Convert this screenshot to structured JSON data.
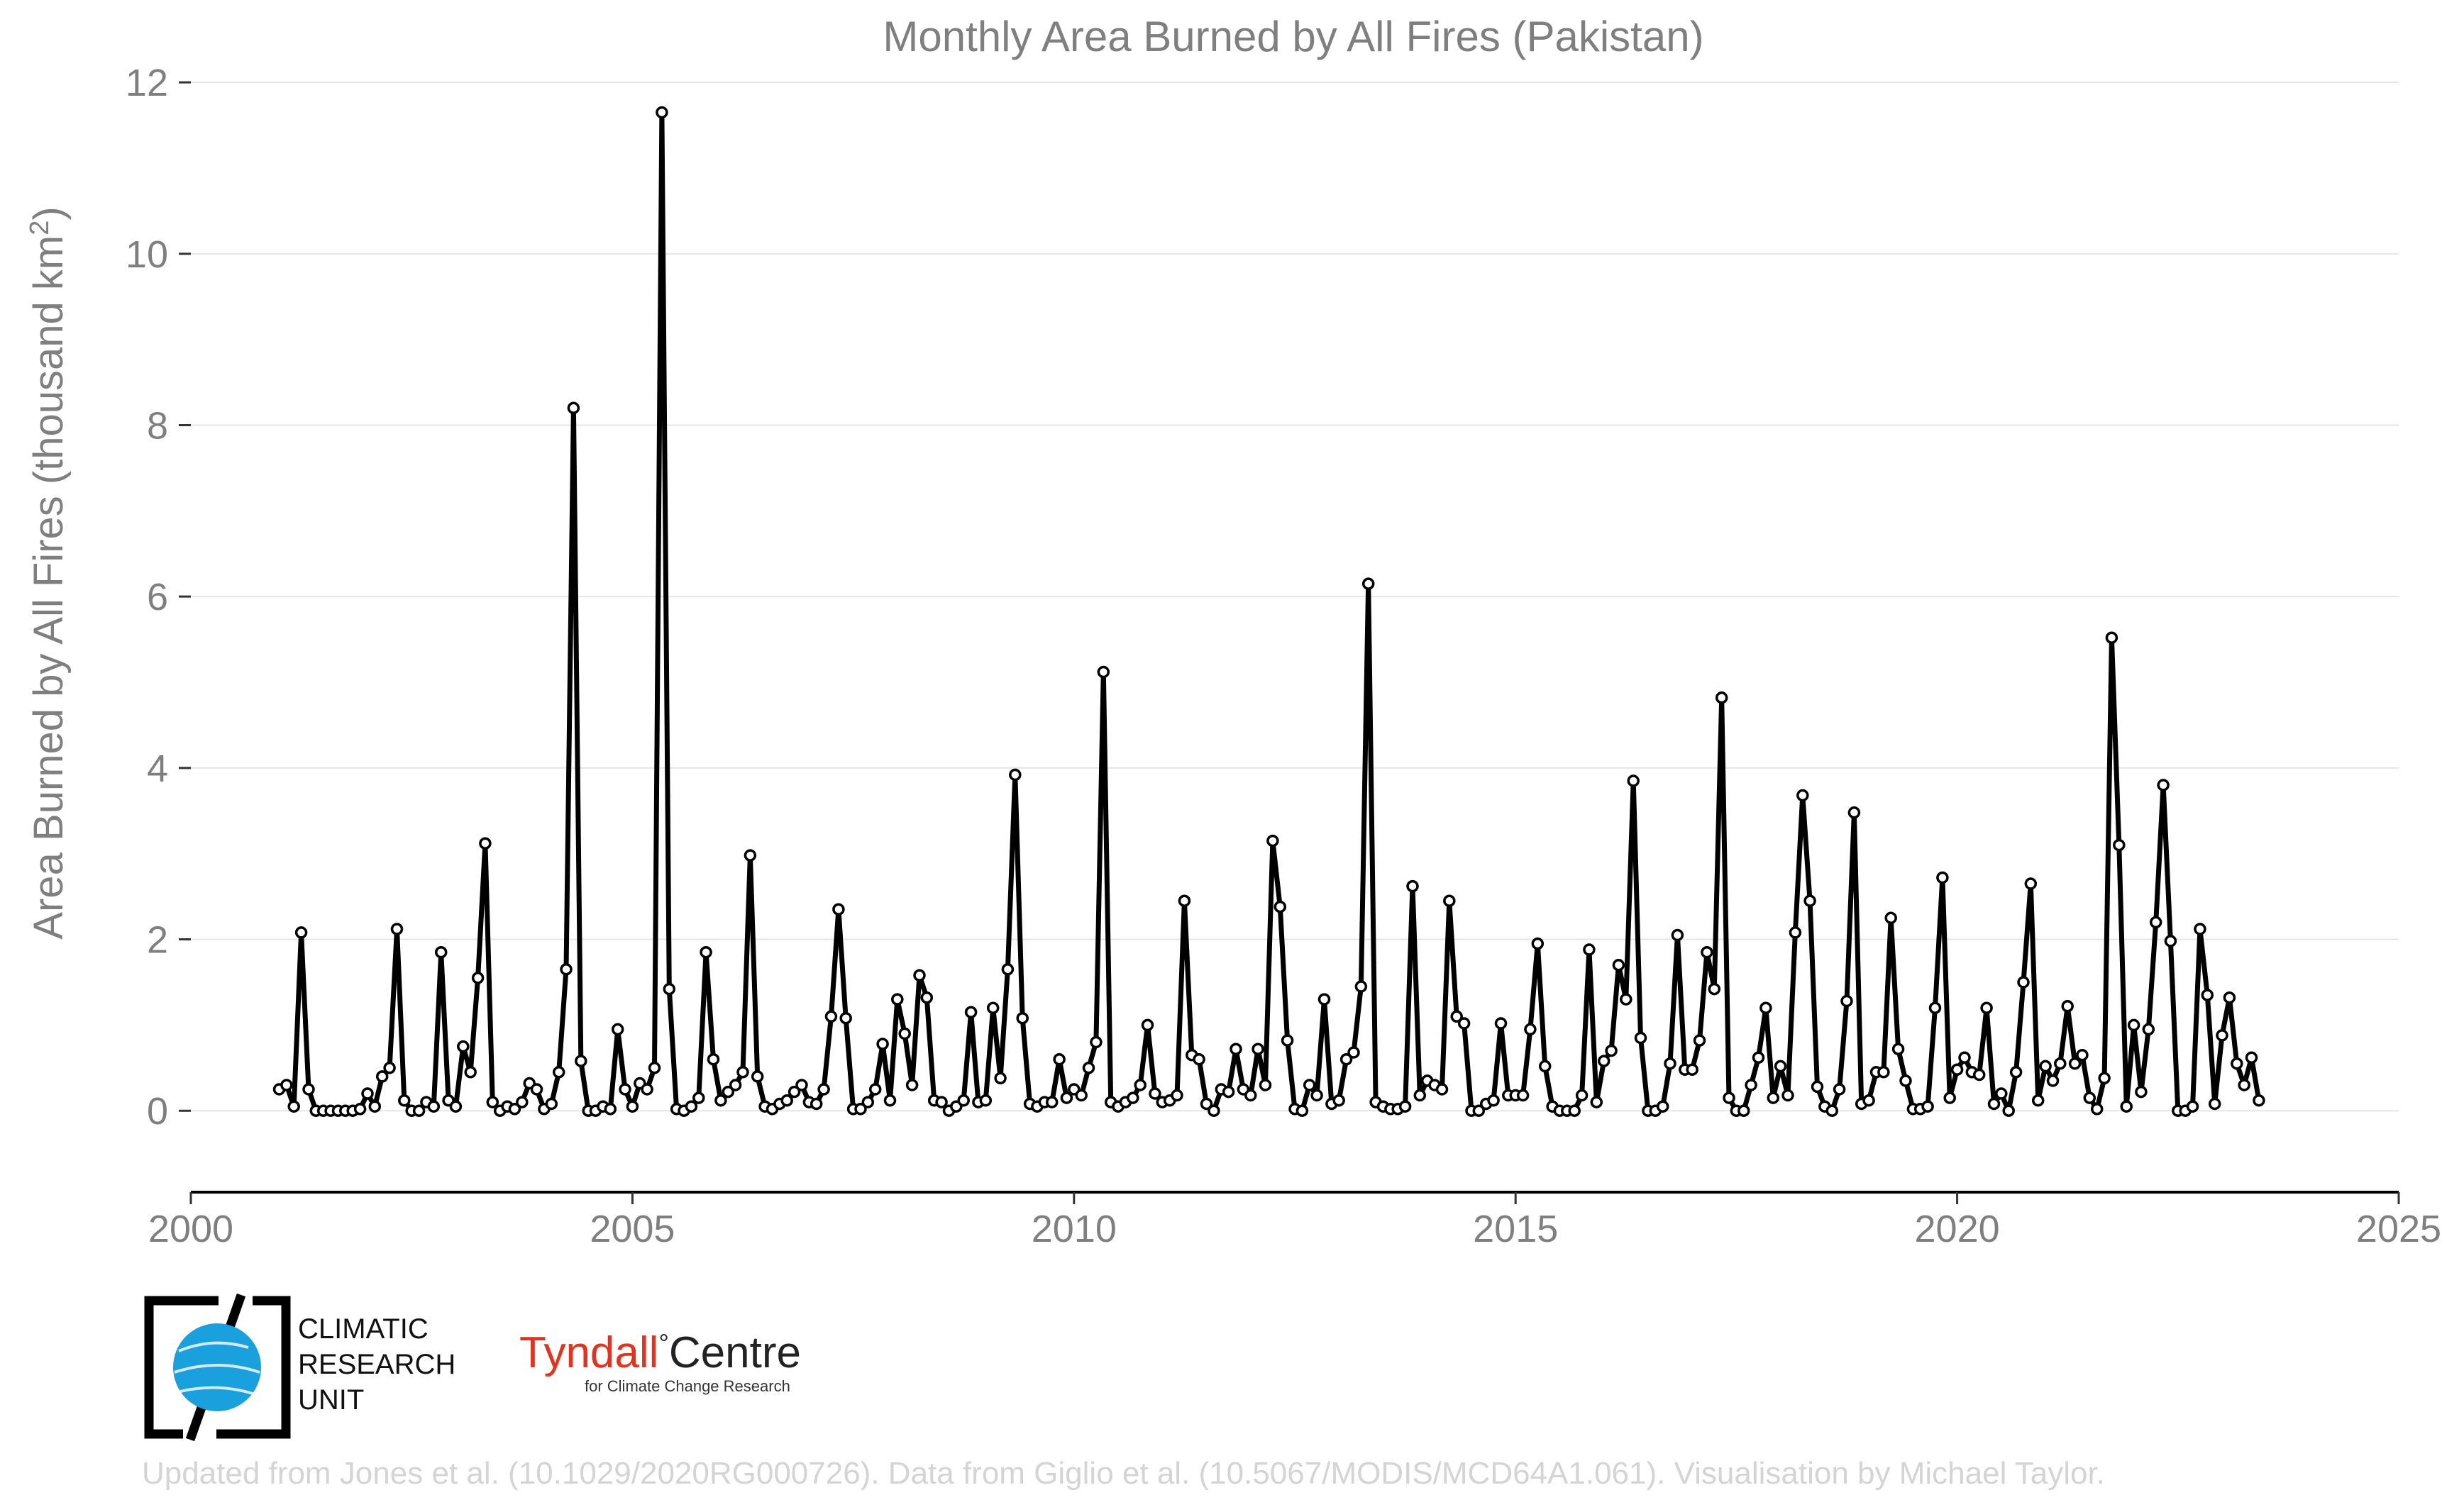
{
  "chart_data": {
    "type": "line",
    "title": "Monthly Area Burned by All Fires (Pakistan)",
    "ylabel": "Area Burned by All Fires (thousand km",
    "ylabel_sup": "2",
    "ylabel_end": ")",
    "xlabel": "",
    "xlim": [
      2000,
      2025
    ],
    "ylim": [
      -0.95,
      12.2
    ],
    "x_ticks": [
      2000,
      2005,
      2010,
      2015,
      2020,
      2025
    ],
    "x_tick_labels": [
      "2000",
      "2005",
      "2010",
      "2015",
      "2020",
      "2025"
    ],
    "y_ticks": [
      0,
      2,
      4,
      6,
      8,
      10,
      12
    ],
    "y_tick_labels": [
      "0",
      "2",
      "4",
      "6",
      "8",
      "10",
      "12"
    ],
    "grid": "horizontal",
    "legend": "none",
    "start_year": 2001,
    "start_month": 1,
    "series": [
      {
        "values": [
          0.25,
          0.3,
          0.05,
          2.08,
          0.25,
          0.0,
          0.0,
          0.0,
          0.0,
          0.0,
          0.0,
          0.02,
          0.2,
          0.05,
          0.4,
          0.5,
          2.12,
          0.12,
          0.0,
          0.0,
          0.1,
          0.05,
          1.85,
          0.12,
          0.05,
          0.75,
          0.45,
          1.55,
          3.12,
          0.1,
          0.0,
          0.05,
          0.02,
          0.1,
          0.32,
          0.25,
          0.02,
          0.08,
          0.45,
          1.65,
          8.2,
          0.58,
          0.0,
          0.0,
          0.05,
          0.02,
          0.95,
          0.25,
          0.05,
          0.32,
          0.25,
          0.5,
          11.65,
          1.42,
          0.02,
          0.0,
          0.05,
          0.15,
          1.85,
          0.6,
          0.12,
          0.22,
          0.3,
          0.45,
          2.98,
          0.4,
          0.05,
          0.02,
          0.08,
          0.12,
          0.22,
          0.3,
          0.1,
          0.08,
          0.25,
          1.1,
          2.35,
          1.08,
          0.02,
          0.02,
          0.1,
          0.25,
          0.78,
          0.12,
          1.3,
          0.9,
          0.3,
          1.58,
          1.32,
          0.12,
          0.1,
          0.0,
          0.05,
          0.12,
          1.15,
          0.1,
          0.12,
          1.2,
          0.38,
          1.65,
          3.92,
          1.08,
          0.08,
          0.05,
          0.1,
          0.1,
          0.6,
          0.15,
          0.25,
          0.18,
          0.5,
          0.8,
          5.12,
          0.1,
          0.05,
          0.1,
          0.15,
          0.3,
          1.0,
          0.2,
          0.1,
          0.12,
          0.18,
          2.45,
          0.65,
          0.6,
          0.08,
          0.0,
          0.25,
          0.22,
          0.72,
          0.25,
          0.18,
          0.72,
          0.3,
          3.15,
          2.38,
          0.82,
          0.02,
          0.0,
          0.3,
          0.18,
          1.3,
          0.08,
          0.12,
          0.6,
          0.68,
          1.45,
          6.15,
          0.1,
          0.05,
          0.02,
          0.02,
          0.05,
          2.62,
          0.18,
          0.35,
          0.3,
          0.25,
          2.45,
          1.1,
          1.02,
          0.0,
          0.0,
          0.08,
          0.12,
          1.02,
          0.18,
          0.18,
          0.18,
          0.95,
          1.95,
          0.52,
          0.05,
          0.0,
          0.0,
          0.0,
          0.18,
          1.88,
          0.1,
          0.58,
          0.7,
          1.7,
          1.3,
          3.85,
          0.85,
          0.0,
          0.0,
          0.05,
          0.55,
          2.05,
          0.48,
          0.48,
          0.82,
          1.85,
          1.42,
          4.82,
          0.15,
          0.0,
          0.0,
          0.3,
          0.62,
          1.2,
          0.15,
          0.52,
          0.18,
          2.08,
          3.68,
          2.45,
          0.28,
          0.05,
          0.0,
          0.25,
          1.28,
          3.48,
          0.08,
          0.12,
          0.45,
          0.45,
          2.25,
          0.72,
          0.35,
          0.02,
          0.02,
          0.05,
          1.2,
          2.72,
          0.15,
          0.48,
          0.62,
          0.45,
          0.42,
          1.2,
          0.08,
          0.2,
          0.0,
          0.45,
          1.5,
          2.65,
          0.12,
          0.52,
          0.35,
          0.55,
          1.22,
          0.55,
          0.65,
          0.15,
          0.02,
          0.38,
          5.52,
          3.1,
          0.05,
          1.0,
          0.22,
          0.95,
          2.2,
          3.8,
          1.98,
          0.0,
          0.0,
          0.05,
          2.12,
          1.35,
          0.08,
          0.88,
          1.32,
          0.55,
          0.3,
          0.62,
          0.12
        ]
      }
    ]
  },
  "logos": {
    "cru": {
      "line1": "CLIMATIC",
      "line2": "RESEARCH",
      "line3": "UNIT",
      "globe_color": "#1aa0dc"
    },
    "tyndall": {
      "name_part1": "Tyndall",
      "degree_mark": "°",
      "name_part2": "Centre",
      "tagline": "for Climate Change Research",
      "accent_color": "#e8301c"
    }
  },
  "footer": {
    "credit": "Updated from Jones et al. (10.1029/2020RG000726). Data from Giglio et al. (10.5067/MODIS/MCD64A1.061). Visualisation by Michael Taylor."
  },
  "colors": {
    "line": "#000000",
    "marker_fill": "#ffffff",
    "grid": "#e6e6e6",
    "text": "#7f7f7f",
    "footer_text": "#d4d4d4"
  }
}
